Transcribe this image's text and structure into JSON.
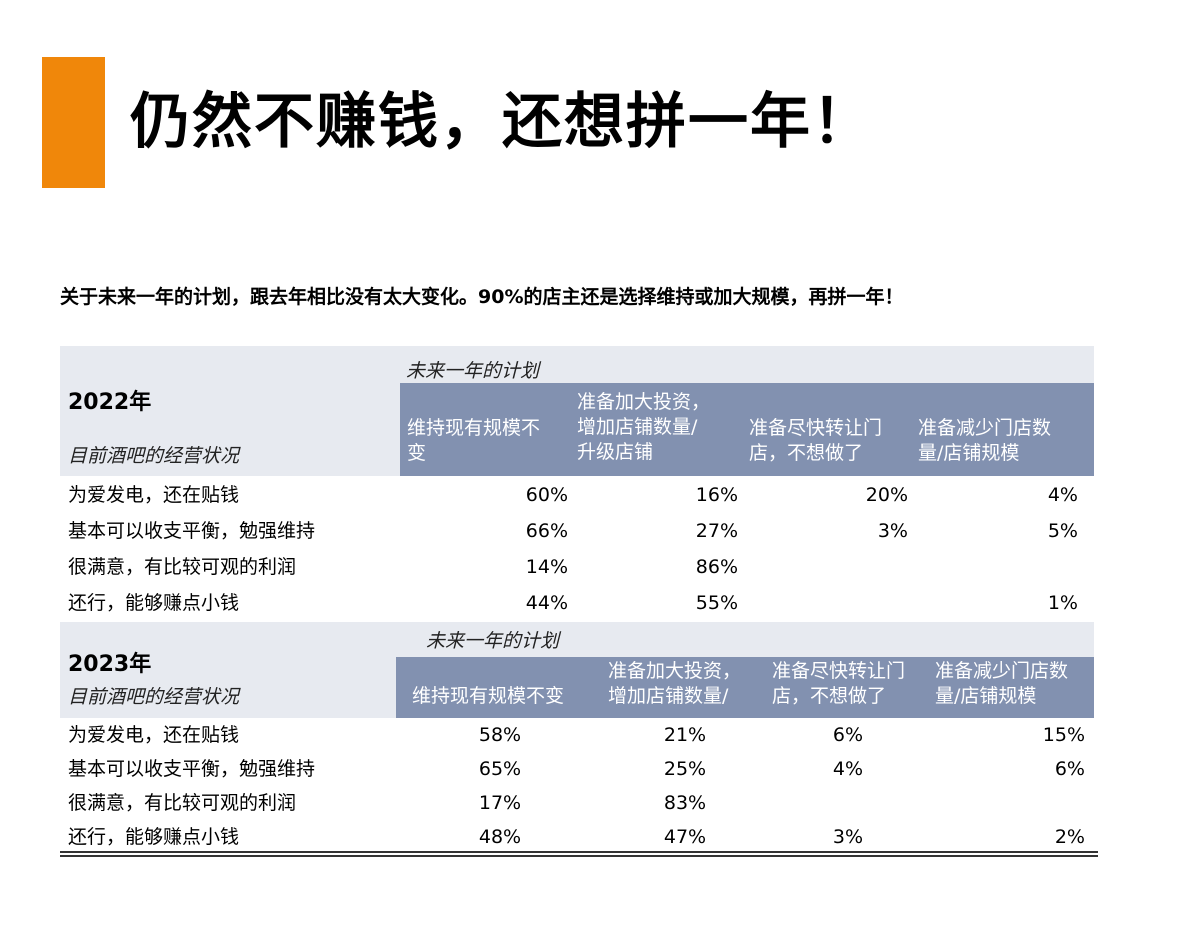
{
  "title": "仍然不赚钱，还想拼一年！",
  "subtitle": "关于未来一年的计划，跟去年相比没有太大变化。90%的店主还是选择维持或加大规模，再拼一年！",
  "colors": {
    "accent": "#F0870A",
    "header_band": "#8291B0",
    "header_bg": "#E7EAF0"
  },
  "table_2022": {
    "year": "2022年",
    "status_label": "目前酒吧的经营状况",
    "plan_label": "未来一年的计划",
    "columns": [
      "维持现有规模不\n变",
      "准备加大投资，\n增加店铺数量/\n升级店铺",
      "准备尽快转让门\n店，不想做了",
      "准备减少门店数\n量/店铺规模"
    ],
    "rows": [
      {
        "label": "为爱发电，还在贴钱",
        "values": [
          "60%",
          "16%",
          "20%",
          "4%"
        ]
      },
      {
        "label": "基本可以收支平衡，勉强维持",
        "values": [
          "66%",
          "27%",
          "3%",
          "5%"
        ]
      },
      {
        "label": "很满意，有比较可观的利润",
        "values": [
          "14%",
          "86%",
          "",
          ""
        ]
      },
      {
        "label": "还行，能够赚点小钱",
        "values": [
          "44%",
          "55%",
          "",
          "1%"
        ]
      }
    ]
  },
  "table_2023": {
    "year": "2023年",
    "status_label": "目前酒吧的经营状况",
    "plan_label": "未来一年的计划",
    "columns": [
      "维持现有规模不变",
      "准备加大投资，\n增加店铺数量/",
      "准备尽快转让门\n店，不想做了",
      "准备减少门店数\n量/店铺规模"
    ],
    "rows": [
      {
        "label": "为爱发电，还在贴钱",
        "values": [
          "58%",
          "21%",
          "6%",
          "15%"
        ]
      },
      {
        "label": "基本可以收支平衡，勉强维持",
        "values": [
          "65%",
          "25%",
          "4%",
          "6%"
        ]
      },
      {
        "label": "很满意，有比较可观的利润",
        "values": [
          "17%",
          "83%",
          "",
          ""
        ]
      },
      {
        "label": "还行，能够赚点小钱",
        "values": [
          "48%",
          "47%",
          "3%",
          "2%"
        ]
      }
    ]
  }
}
